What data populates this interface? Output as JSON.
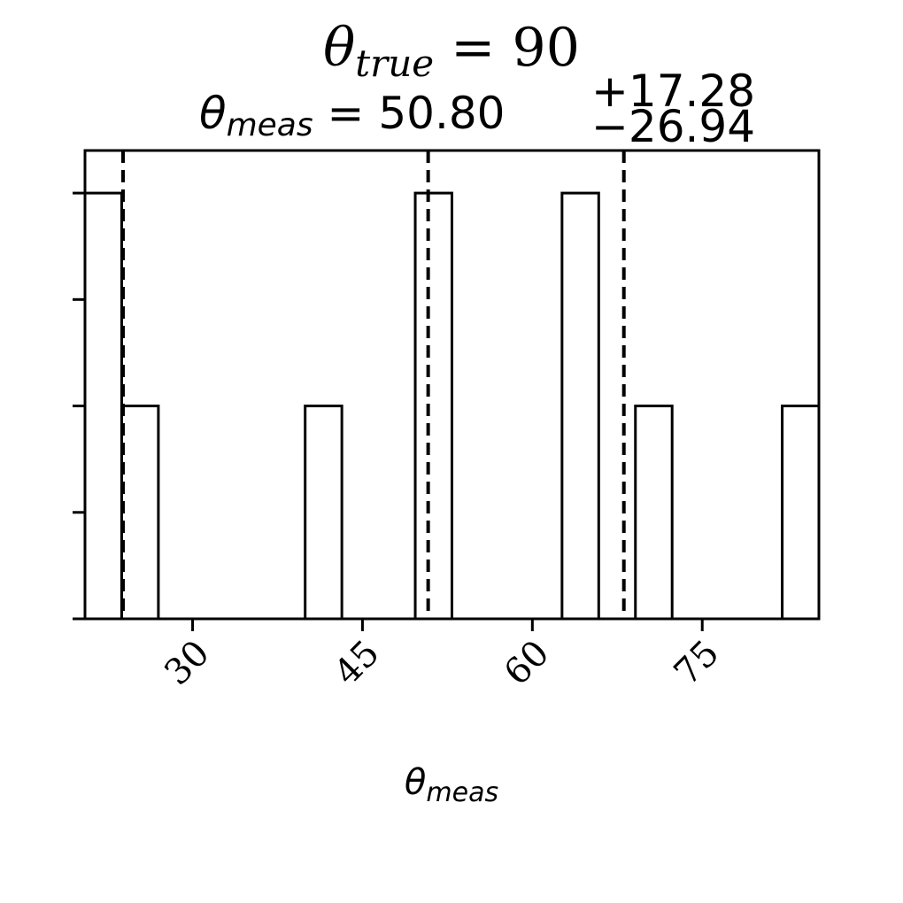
{
  "chart_data": {
    "type": "bar",
    "subtype": "histogram-step",
    "title": {
      "symbol": "θ",
      "subscript": "true",
      "rest": " = 90"
    },
    "subtitle": {
      "symbol": "θ",
      "subscript": "meas",
      "equals": " = ",
      "value": "50.80",
      "plus": "+17.28",
      "minus": "−26.94"
    },
    "xlabel": {
      "symbol": "θ",
      "subscript": "meas"
    },
    "ylabel": "",
    "xlim": [
      20.5,
      85.3
    ],
    "ylim": [
      0,
      4.4
    ],
    "xticks": [
      30,
      45,
      60,
      75
    ],
    "xtick_labels": [
      "30",
      "45",
      "60",
      "75"
    ],
    "yticks": [
      0,
      1,
      2,
      3,
      4
    ],
    "ytick_labels_shown": false,
    "bins": [
      {
        "x0": 20.5,
        "x1": 23.74,
        "count": 4
      },
      {
        "x0": 23.74,
        "x1": 26.98,
        "count": 2
      },
      {
        "x0": 26.98,
        "x1": 30.22,
        "count": 0
      },
      {
        "x0": 30.22,
        "x1": 33.46,
        "count": 0
      },
      {
        "x0": 33.46,
        "x1": 36.7,
        "count": 0
      },
      {
        "x0": 36.7,
        "x1": 39.94,
        "count": 0
      },
      {
        "x0": 39.94,
        "x1": 43.18,
        "count": 2
      },
      {
        "x0": 43.18,
        "x1": 46.42,
        "count": 0
      },
      {
        "x0": 46.42,
        "x1": 49.66,
        "count": 0
      },
      {
        "x0": 49.66,
        "x1": 52.9,
        "count": 4
      },
      {
        "x0": 52.9,
        "x1": 56.14,
        "count": 0
      },
      {
        "x0": 56.14,
        "x1": 59.38,
        "count": 0
      },
      {
        "x0": 59.38,
        "x1": 62.62,
        "count": 0
      },
      {
        "x0": 62.62,
        "x1": 65.86,
        "count": 4
      },
      {
        "x0": 65.86,
        "x1": 69.1,
        "count": 0
      },
      {
        "x0": 69.1,
        "x1": 72.34,
        "count": 2
      },
      {
        "x0": 72.34,
        "x1": 75.58,
        "count": 0
      },
      {
        "x0": 75.58,
        "x1": 78.82,
        "count": 0
      },
      {
        "x0": 78.82,
        "x1": 82.06,
        "count": 0
      },
      {
        "x0": 82.06,
        "x1": 85.3,
        "count": 2
      }
    ],
    "quantile_lines": [
      23.86,
      50.8,
      68.08
    ],
    "grid": false,
    "legend": "none",
    "colors": {
      "bar_edge": "#000000",
      "bar_fill": "#ffffff",
      "quantile_line": "#000000"
    }
  }
}
